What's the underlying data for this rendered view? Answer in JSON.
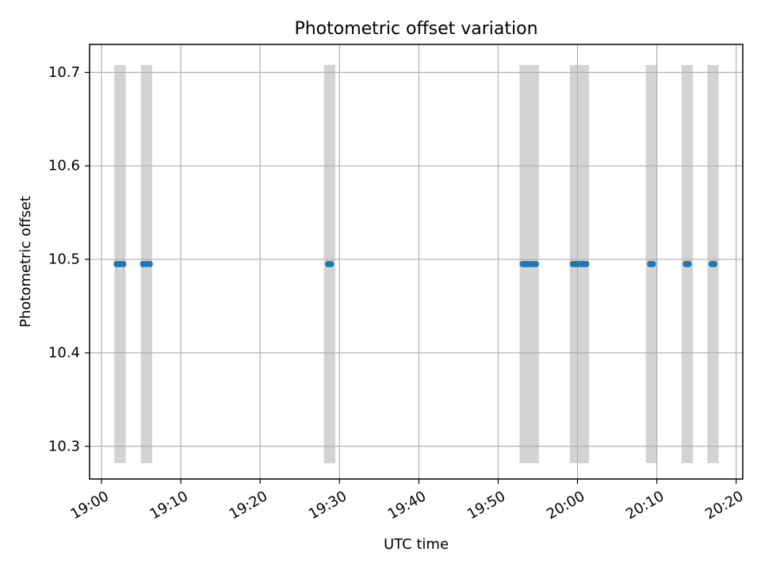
{
  "chart_data": {
    "type": "scatter",
    "title": "Photometric offset variation",
    "xlabel": "UTC time",
    "ylabel": "Photometric offset",
    "x_unit": "UTC",
    "xlim": [
      "18:58:30",
      "20:20:50"
    ],
    "ylim": [
      10.265,
      10.73
    ],
    "grid": true,
    "x_ticks": [
      "19:00",
      "19:10",
      "19:20",
      "19:30",
      "19:40",
      "19:50",
      "20:00",
      "20:10",
      "20:20"
    ],
    "y_ticks": [
      "10.3",
      "10.4",
      "10.5",
      "10.6",
      "10.7"
    ],
    "exposure_band_range": [
      10.282,
      10.708
    ],
    "exposure_band_color": "#d3d3d3",
    "exposure_bands": [
      {
        "start": "19:01:55",
        "end": "19:02:45"
      },
      {
        "start": "19:05:15",
        "end": "19:06:05"
      },
      {
        "start": "19:28:20",
        "end": "19:29:10"
      },
      {
        "start": "19:53:00",
        "end": "19:54:50"
      },
      {
        "start": "19:59:20",
        "end": "20:01:10"
      },
      {
        "start": "20:08:55",
        "end": "20:09:45"
      },
      {
        "start": "20:13:25",
        "end": "20:14:15"
      },
      {
        "start": "20:16:40",
        "end": "20:17:30"
      }
    ],
    "series": [
      {
        "color": "#1f77b4",
        "points": [
          {
            "x": "19:01:55",
            "y": 10.495
          },
          {
            "x": "19:02:20",
            "y": 10.495
          },
          {
            "x": "19:02:45",
            "y": 10.495
          },
          {
            "x": "19:05:15",
            "y": 10.495
          },
          {
            "x": "19:05:40",
            "y": 10.495
          },
          {
            "x": "19:06:05",
            "y": 10.495
          },
          {
            "x": "19:28:35",
            "y": 10.495
          },
          {
            "x": "19:28:55",
            "y": 10.495
          },
          {
            "x": "19:53:05",
            "y": 10.495
          },
          {
            "x": "19:53:25",
            "y": 10.495
          },
          {
            "x": "19:53:45",
            "y": 10.495
          },
          {
            "x": "19:54:05",
            "y": 10.495
          },
          {
            "x": "19:54:25",
            "y": 10.495
          },
          {
            "x": "19:54:45",
            "y": 10.495
          },
          {
            "x": "19:59:25",
            "y": 10.495
          },
          {
            "x": "19:59:45",
            "y": 10.495
          },
          {
            "x": "20:00:05",
            "y": 10.495
          },
          {
            "x": "20:00:25",
            "y": 10.495
          },
          {
            "x": "20:00:45",
            "y": 10.495
          },
          {
            "x": "20:01:05",
            "y": 10.495
          },
          {
            "x": "20:09:10",
            "y": 10.495
          },
          {
            "x": "20:09:30",
            "y": 10.495
          },
          {
            "x": "20:13:40",
            "y": 10.495
          },
          {
            "x": "20:14:00",
            "y": 10.495
          },
          {
            "x": "20:16:55",
            "y": 10.495
          },
          {
            "x": "20:17:15",
            "y": 10.495
          }
        ]
      }
    ]
  }
}
